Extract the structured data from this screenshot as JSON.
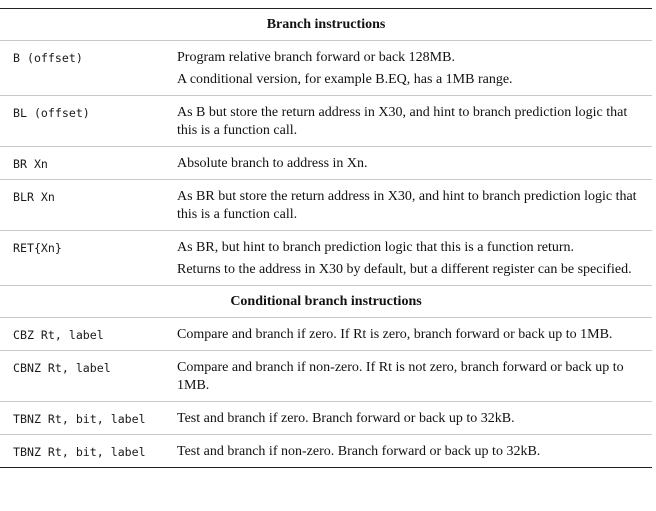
{
  "sections": [
    {
      "title": "Branch instructions",
      "rows": [
        {
          "instruction": "B (offset)",
          "description": [
            "Program relative branch forward or back 128MB.",
            "A conditional version, for example B.EQ, has a 1MB range."
          ]
        },
        {
          "instruction": "BL (offset)",
          "description": [
            "As B but store the return address in X30, and hint to branch prediction logic that this is a function call."
          ]
        },
        {
          "instruction": "BR Xn",
          "description": [
            "Absolute branch to address in Xn."
          ]
        },
        {
          "instruction": "BLR Xn",
          "description": [
            "As BR but store the return address in X30, and hint to branch prediction logic that this is a function call."
          ]
        },
        {
          "instruction": "RET{Xn}",
          "description": [
            "As BR, but hint to branch prediction logic that this is a function return.",
            "Returns to the address in X30 by default, but a different register can be specified."
          ]
        }
      ]
    },
    {
      "title": "Conditional branch instructions",
      "rows": [
        {
          "instruction": "CBZ Rt, label",
          "description": [
            "Compare and branch if zero. If Rt is zero, branch forward or back up to 1MB."
          ]
        },
        {
          "instruction": "CBNZ Rt, label",
          "description": [
            "Compare and branch if non-zero. If Rt is not zero, branch forward or back up to 1MB."
          ]
        },
        {
          "instruction": "TBNZ Rt, bit, label",
          "description": [
            "Test and branch if zero. Branch forward or back up to 32kB."
          ]
        },
        {
          "instruction": "TBNZ Rt, bit, label",
          "description": [
            "Test and branch if non-zero. Branch forward or back up to 32kB."
          ]
        }
      ]
    }
  ]
}
